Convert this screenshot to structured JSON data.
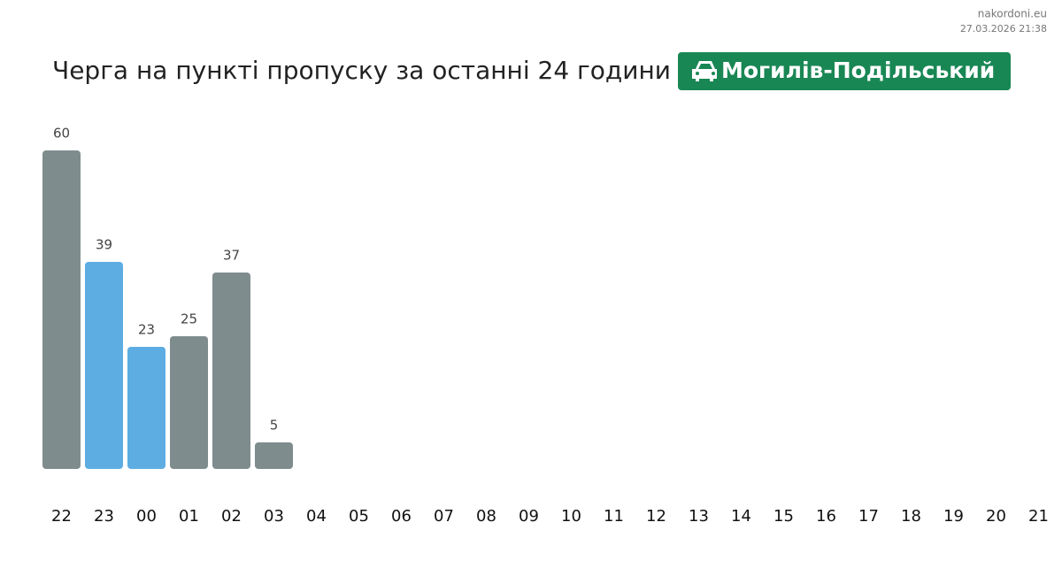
{
  "site": "nakordoni.eu",
  "timestamp": "27.03.2026 21:38",
  "chart_data": {
    "type": "bar",
    "title": "Черга на пункті пропуску за останні 24 години",
    "badge": "Могилів-Подільський",
    "categories": [
      "22",
      "23",
      "00",
      "01",
      "02",
      "03",
      "04",
      "05",
      "06",
      "07",
      "08",
      "09",
      "10",
      "11",
      "12",
      "13",
      "14",
      "15",
      "16",
      "17",
      "18",
      "19",
      "20",
      "21"
    ],
    "values": [
      60,
      39,
      23,
      25,
      37,
      5,
      null,
      null,
      null,
      null,
      null,
      null,
      null,
      null,
      null,
      null,
      null,
      null,
      null,
      null,
      null,
      null,
      null,
      null
    ],
    "colors": [
      "#7f8c8d",
      "#5dade2",
      "#5dade2",
      "#7f8c8d",
      "#7f8c8d",
      "#7f8c8d"
    ]
  }
}
